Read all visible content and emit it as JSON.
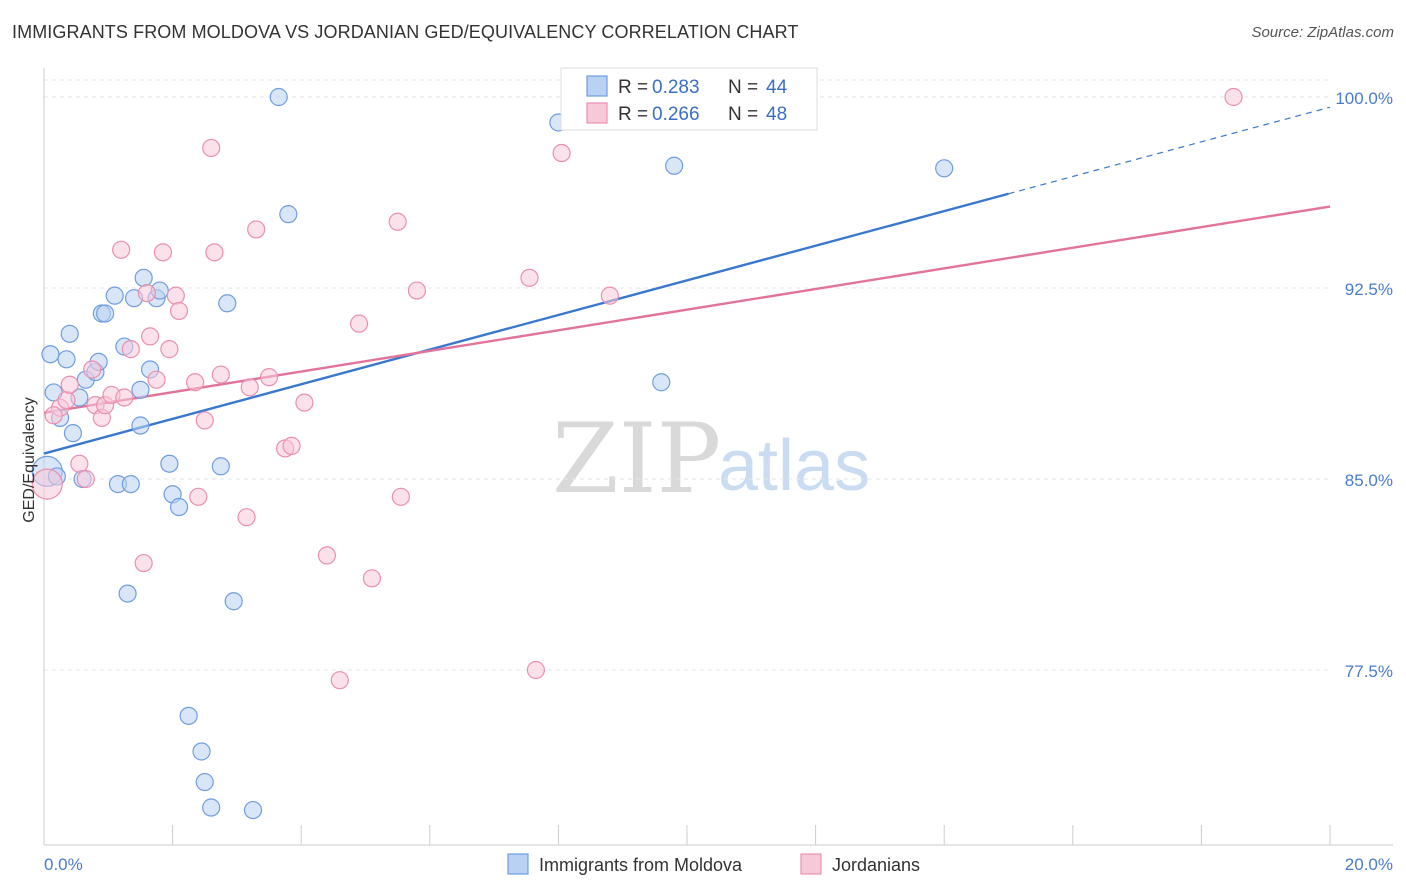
{
  "chart_data": {
    "type": "scatter",
    "title": "IMMIGRANTS FROM MOLDOVA VS JORDANIAN GED/EQUIVALENCY CORRELATION CHART",
    "source": "Source: ZipAtlas.com",
    "ylabel": "GED/Equivalency",
    "xlabel": "",
    "xlim": [
      0,
      20
    ],
    "ylim": [
      71.0,
      100.8
    ],
    "x_tick_labels": [
      "0.0%",
      "20.0%"
    ],
    "y_ticks": [
      {
        "value": 100.0,
        "label": "100.0%"
      },
      {
        "value": 92.5,
        "label": "92.5%"
      },
      {
        "value": 85.0,
        "label": "85.0%"
      },
      {
        "value": 77.5,
        "label": "77.5%"
      }
    ],
    "watermark": {
      "zip": "ZIP",
      "atlas": "atlas"
    },
    "legend": [
      {
        "r_label": "R = ",
        "r_value": "0.283",
        "n_label": "N = ",
        "n_value": "44"
      },
      {
        "r_label": "R = ",
        "r_value": "0.266",
        "n_label": "N = ",
        "n_value": "48"
      }
    ],
    "series": [
      {
        "name": "Immigrants from Moldova",
        "color": "#6f9ee0",
        "fill": "#b9d1f3",
        "line_color": "#3a78cf",
        "trend": {
          "x0": 0.0,
          "y0": 86.0,
          "x1": 15.0,
          "y1": 96.2,
          "x_dash_end": 20.0,
          "y_dash_end": 99.6
        },
        "points": [
          [
            0.05,
            85.3
          ],
          [
            0.1,
            89.9
          ],
          [
            0.15,
            88.4
          ],
          [
            0.25,
            87.4
          ],
          [
            0.35,
            89.7
          ],
          [
            0.4,
            90.7
          ],
          [
            0.45,
            86.8
          ],
          [
            0.55,
            88.2
          ],
          [
            0.6,
            85.0
          ],
          [
            0.65,
            88.9
          ],
          [
            0.8,
            89.2
          ],
          [
            0.85,
            89.6
          ],
          [
            0.9,
            91.5
          ],
          [
            0.95,
            91.5
          ],
          [
            1.1,
            92.2
          ],
          [
            1.15,
            84.8
          ],
          [
            1.3,
            80.5
          ],
          [
            1.25,
            90.2
          ],
          [
            1.4,
            92.1
          ],
          [
            1.35,
            84.8
          ],
          [
            1.5,
            87.1
          ],
          [
            1.5,
            88.5
          ],
          [
            1.55,
            92.9
          ],
          [
            1.65,
            89.3
          ],
          [
            1.75,
            92.1
          ],
          [
            1.8,
            92.4
          ],
          [
            1.95,
            85.6
          ],
          [
            2.0,
            84.4
          ],
          [
            2.1,
            83.9
          ],
          [
            2.25,
            75.7
          ],
          [
            2.45,
            74.3
          ],
          [
            2.5,
            73.1
          ],
          [
            2.6,
            72.1
          ],
          [
            2.75,
            85.5
          ],
          [
            2.85,
            91.9
          ],
          [
            2.95,
            80.2
          ],
          [
            3.25,
            72.0
          ],
          [
            3.65,
            100.0
          ],
          [
            3.8,
            95.4
          ],
          [
            8.0,
            99.0
          ],
          [
            9.6,
            88.8
          ],
          [
            9.8,
            97.3
          ],
          [
            14.0,
            97.2
          ],
          [
            0.2,
            85.1
          ]
        ]
      },
      {
        "name": "Jordanians",
        "color": "#eb8fb0",
        "fill": "#f7c8d8",
        "line_color": "#e2749c",
        "trend": {
          "x0": 0.0,
          "y0": 87.6,
          "x1": 20.0,
          "y1": 95.7
        },
        "points": [
          [
            0.05,
            84.8
          ],
          [
            0.25,
            87.8
          ],
          [
            0.35,
            88.1
          ],
          [
            0.4,
            88.7
          ],
          [
            0.55,
            85.6
          ],
          [
            0.65,
            85.0
          ],
          [
            0.75,
            89.3
          ],
          [
            0.8,
            87.9
          ],
          [
            0.9,
            87.4
          ],
          [
            0.95,
            87.9
          ],
          [
            1.05,
            88.3
          ],
          [
            1.2,
            94.0
          ],
          [
            1.35,
            90.1
          ],
          [
            1.55,
            81.7
          ],
          [
            1.6,
            92.3
          ],
          [
            1.65,
            90.6
          ],
          [
            1.75,
            88.9
          ],
          [
            1.85,
            93.9
          ],
          [
            1.95,
            90.1
          ],
          [
            2.05,
            92.2
          ],
          [
            2.1,
            91.6
          ],
          [
            2.35,
            88.8
          ],
          [
            2.4,
            84.3
          ],
          [
            2.5,
            87.3
          ],
          [
            2.6,
            98.0
          ],
          [
            2.65,
            93.9
          ],
          [
            2.75,
            89.1
          ],
          [
            3.15,
            83.5
          ],
          [
            3.2,
            88.6
          ],
          [
            3.3,
            94.8
          ],
          [
            3.5,
            89.0
          ],
          [
            3.75,
            86.2
          ],
          [
            3.85,
            86.3
          ],
          [
            4.05,
            88.0
          ],
          [
            4.4,
            82.0
          ],
          [
            4.6,
            77.1
          ],
          [
            4.9,
            91.1
          ],
          [
            5.1,
            81.1
          ],
          [
            5.5,
            95.1
          ],
          [
            5.55,
            84.3
          ],
          [
            5.8,
            92.4
          ],
          [
            7.55,
            92.9
          ],
          [
            7.65,
            77.5
          ],
          [
            8.05,
            97.8
          ],
          [
            8.8,
            92.2
          ],
          [
            18.5,
            100.0
          ],
          [
            0.15,
            87.5
          ],
          [
            1.25,
            88.2
          ]
        ]
      }
    ]
  }
}
